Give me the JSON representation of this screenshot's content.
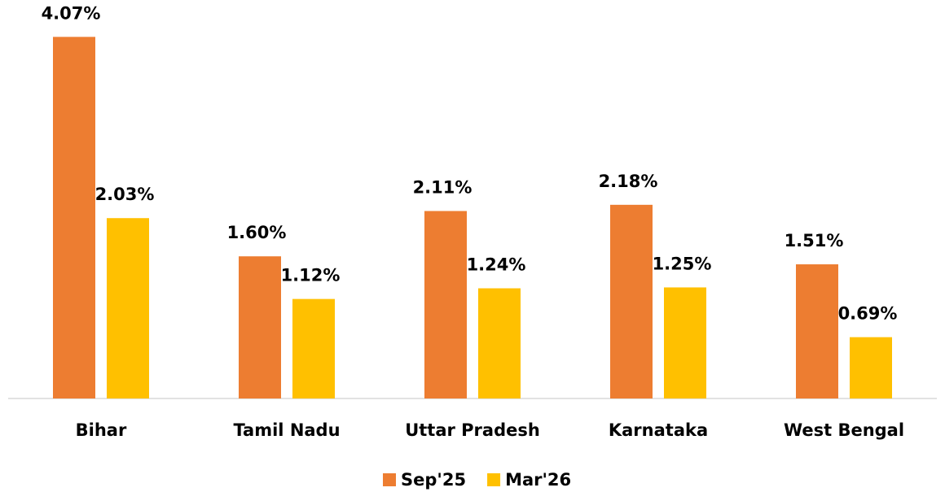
{
  "chart_data": {
    "type": "bar",
    "categories": [
      "Bihar",
      "Tamil Nadu",
      "Uttar Pradesh",
      "Karnataka",
      "West Bengal"
    ],
    "series": [
      {
        "name": "Sep'25",
        "color": "#ed7d31",
        "values": [
          4.07,
          1.6,
          2.11,
          2.18,
          1.51
        ],
        "value_labels": [
          "4.07%",
          "1.60%",
          "2.11%",
          "2.18%",
          "1.51%"
        ]
      },
      {
        "name": "Mar'26",
        "color": "#ffc000",
        "values": [
          2.03,
          1.12,
          1.24,
          1.25,
          0.69
        ],
        "value_labels": [
          "2.03%",
          "1.12%",
          "1.24%",
          "1.25%",
          "0.69%"
        ]
      }
    ],
    "ylim": [
      0,
      4
    ],
    "legend": "bottom"
  }
}
